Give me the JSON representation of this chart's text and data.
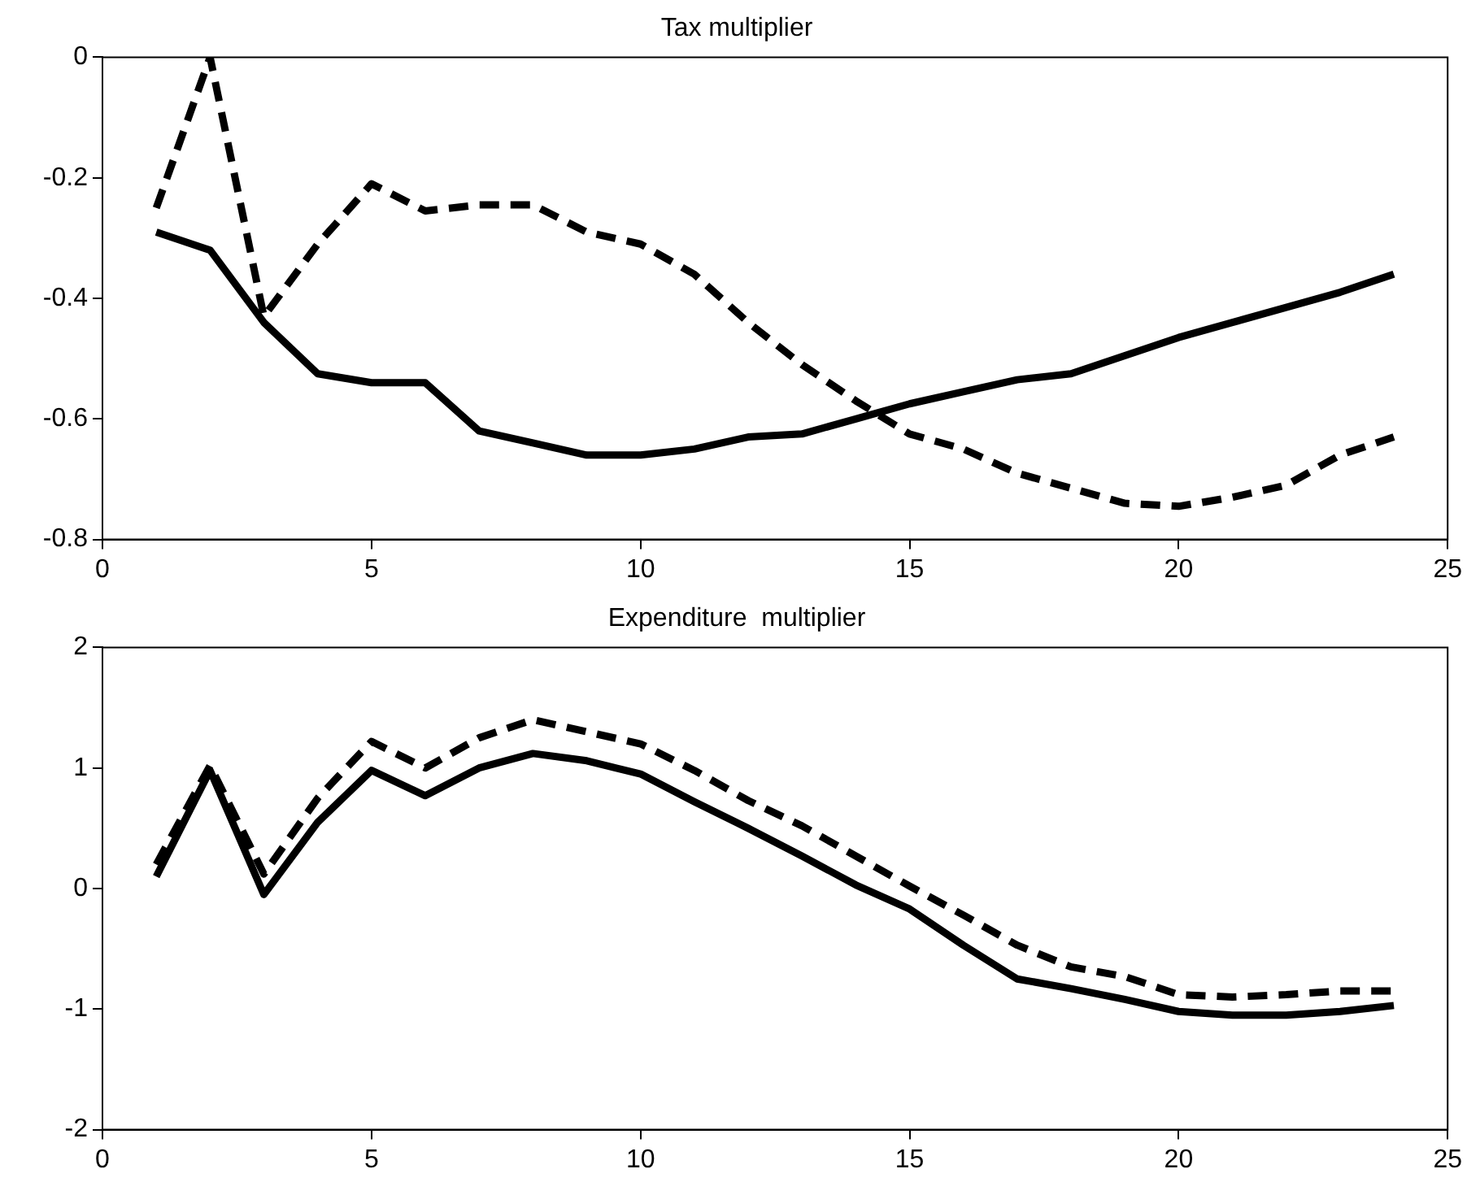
{
  "chart_data": [
    {
      "type": "line",
      "title": "Tax multiplier",
      "x": [
        1,
        2,
        3,
        4,
        5,
        6,
        7,
        8,
        9,
        10,
        11,
        12,
        13,
        14,
        15,
        16,
        17,
        18,
        19,
        20,
        21,
        22,
        23,
        24
      ],
      "xlim": [
        0,
        25
      ],
      "xticks": [
        0,
        5,
        10,
        15,
        20,
        25
      ],
      "ylim": [
        -0.8,
        0
      ],
      "yticks": [
        -0.8,
        -0.6,
        -0.4,
        -0.2,
        0
      ],
      "grid": false,
      "legend": false,
      "marker": "none",
      "series": [
        {
          "color": "#000000",
          "line_style": "solid",
          "values": [
            -0.29,
            -0.32,
            -0.44,
            -0.525,
            -0.54,
            -0.54,
            -0.62,
            -0.64,
            -0.66,
            -0.66,
            -0.65,
            -0.63,
            -0.625,
            -0.6,
            -0.575,
            -0.555,
            -0.535,
            -0.525,
            -0.495,
            -0.465,
            -0.44,
            -0.415,
            -0.39,
            -0.36
          ]
        },
        {
          "color": "#000000",
          "line_style": "dashed",
          "values": [
            -0.25,
            0,
            -0.43,
            -0.31,
            -0.21,
            -0.255,
            -0.245,
            -0.245,
            -0.29,
            -0.31,
            -0.36,
            -0.44,
            -0.51,
            -0.57,
            -0.625,
            -0.65,
            -0.69,
            -0.715,
            -0.74,
            -0.745,
            -0.73,
            -0.71,
            -0.66,
            -0.63
          ]
        }
      ]
    },
    {
      "type": "line",
      "title": "Expenditure  multiplier",
      "x": [
        1,
        2,
        3,
        4,
        5,
        6,
        7,
        8,
        9,
        10,
        11,
        12,
        13,
        14,
        15,
        16,
        17,
        18,
        19,
        20,
        21,
        22,
        23,
        24
      ],
      "xlim": [
        0,
        25
      ],
      "xticks": [
        0,
        5,
        10,
        15,
        20,
        25
      ],
      "ylim": [
        -2,
        2
      ],
      "yticks": [
        -2,
        -1,
        0,
        1,
        2
      ],
      "grid": false,
      "legend": false,
      "marker": "none",
      "series": [
        {
          "color": "#000000",
          "line_style": "solid",
          "values": [
            0.1,
            0.98,
            -0.05,
            0.55,
            0.98,
            0.77,
            1.0,
            1.12,
            1.06,
            0.95,
            0.72,
            0.5,
            0.27,
            0.03,
            -0.17,
            -0.47,
            -0.75,
            -0.83,
            -0.92,
            -1.02,
            -1.05,
            -1.05,
            -1.02,
            -0.97
          ]
        },
        {
          "color": "#000000",
          "line_style": "dashed",
          "values": [
            0.2,
            1.02,
            0.12,
            0.75,
            1.22,
            1.0,
            1.25,
            1.4,
            1.3,
            1.2,
            0.98,
            0.73,
            0.52,
            0.27,
            0.02,
            -0.22,
            -0.47,
            -0.65,
            -0.73,
            -0.88,
            -0.9,
            -0.88,
            -0.85,
            -0.85
          ]
        }
      ]
    }
  ]
}
